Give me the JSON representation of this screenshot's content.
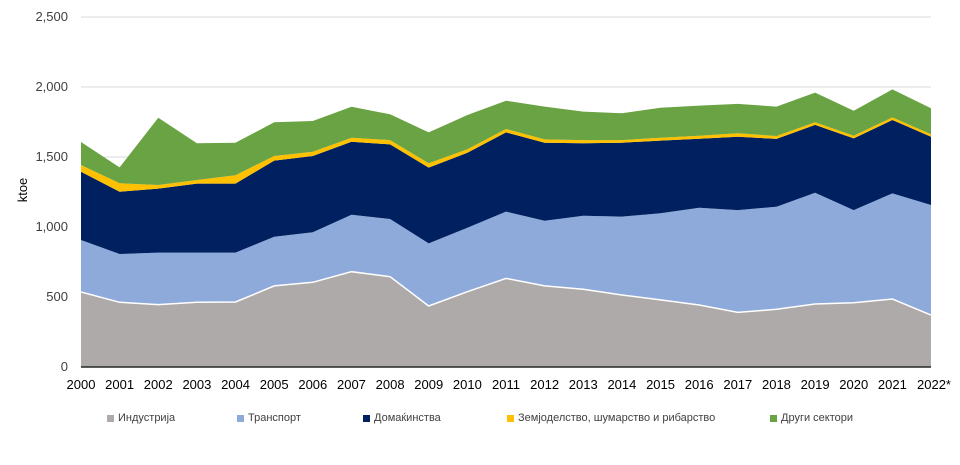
{
  "chart_data": {
    "type": "area",
    "stacked": true,
    "title": "",
    "xlabel": "",
    "ylabel": "ktoe",
    "ylim": [
      0,
      2500
    ],
    "yticks": [
      0,
      500,
      1000,
      1500,
      2000,
      2500
    ],
    "ytick_labels": [
      "0",
      "500",
      "1,000",
      "1,500",
      "2,000",
      "2,500"
    ],
    "grid": true,
    "legend_position": "bottom",
    "categories": [
      "2000",
      "2001",
      "2002",
      "2003",
      "2004",
      "2005",
      "2006",
      "2007",
      "2008",
      "2009",
      "2010",
      "2011",
      "2012",
      "2013",
      "2014",
      "2015",
      "2016",
      "2017",
      "2018",
      "2019",
      "2020",
      "2021",
      "2022*"
    ],
    "series": [
      {
        "name": "Индустрија",
        "color": "#aeaaaa",
        "values": [
          536,
          462,
          446,
          462,
          464,
          579,
          605,
          681,
          645,
          436,
          538,
          633,
          579,
          555,
          514,
          479,
          443,
          390,
          412,
          450,
          459,
          486,
          371
        ]
      },
      {
        "name": "Транспорт",
        "color": "#8eaadb",
        "values": [
          371,
          345,
          371,
          355,
          353,
          352,
          357,
          407,
          412,
          447,
          457,
          477,
          466,
          526,
          560,
          619,
          695,
          731,
          733,
          795,
          662,
          754,
          786
        ]
      },
      {
        "name": "Домаќинства",
        "color": "#002060",
        "values": [
          488,
          445,
          457,
          493,
          493,
          543,
          545,
          521,
          533,
          541,
          536,
          566,
          557,
          517,
          528,
          519,
          493,
          524,
          484,
          484,
          512,
          524,
          488
        ]
      },
      {
        "name": "Земјоделство, шумарство и рибарство",
        "color": "#ffc000",
        "values": [
          48,
          60,
          26,
          26,
          60,
          33,
          31,
          29,
          31,
          31,
          24,
          24,
          24,
          23,
          19,
          21,
          21,
          24,
          21,
          19,
          19,
          19,
          17
        ]
      },
      {
        "name": "Други сектори",
        "color": "#6aa343",
        "values": [
          164,
          114,
          481,
          262,
          232,
          241,
          219,
          221,
          184,
          221,
          245,
          202,
          234,
          203,
          191,
          214,
          215,
          210,
          210,
          212,
          179,
          200,
          186
        ]
      }
    ]
  }
}
